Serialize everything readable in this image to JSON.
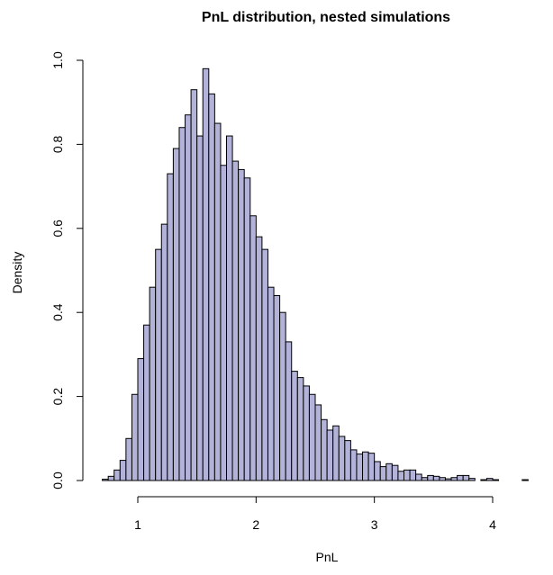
{
  "chart_data": {
    "type": "bar",
    "title": "PnL distribution, nested simulations",
    "xlabel": "PnL",
    "ylabel": "Density",
    "xlim": [
      0.62,
      4.55
    ],
    "ylim": [
      0,
      1.0
    ],
    "x_ticks": [
      "1",
      "2",
      "3",
      "4"
    ],
    "y_ticks": [
      "0.0",
      "0.2",
      "0.4",
      "0.6",
      "0.8",
      "1.0"
    ],
    "grid": false,
    "legend": "none",
    "bin_start": 0.7,
    "bin_width": 0.05,
    "values": [
      0.003,
      0.01,
      0.025,
      0.048,
      0.1,
      0.205,
      0.29,
      0.37,
      0.46,
      0.55,
      0.61,
      0.73,
      0.79,
      0.84,
      0.87,
      0.93,
      0.82,
      0.98,
      0.92,
      0.85,
      0.75,
      0.82,
      0.76,
      0.74,
      0.72,
      0.63,
      0.58,
      0.55,
      0.46,
      0.44,
      0.4,
      0.33,
      0.26,
      0.245,
      0.225,
      0.205,
      0.18,
      0.145,
      0.12,
      0.13,
      0.105,
      0.095,
      0.073,
      0.063,
      0.068,
      0.065,
      0.045,
      0.033,
      0.04,
      0.036,
      0.022,
      0.025,
      0.025,
      0.015,
      0.007,
      0.012,
      0.01,
      0.007,
      0.004,
      0.007,
      0.012,
      0.012,
      0.005,
      0.0,
      0.002,
      0.005,
      0.002,
      0.0,
      0.0,
      0.0,
      0.0,
      0.002
    ],
    "colors": {
      "fill": "#b3b3d9",
      "stroke": "#000000"
    }
  }
}
